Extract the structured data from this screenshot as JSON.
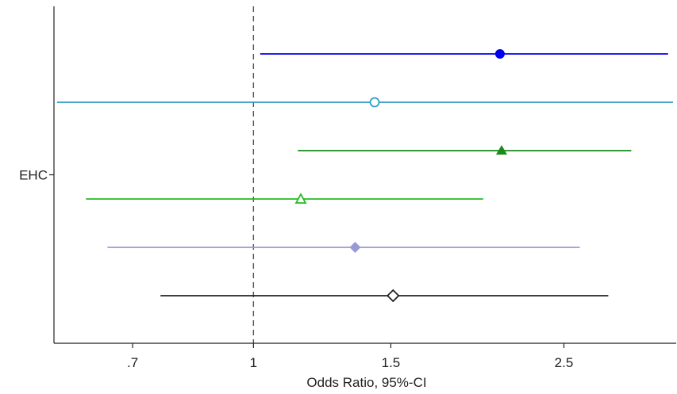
{
  "chart_data": {
    "type": "forest",
    "xlabel": "Odds Ratio, 95%-CI",
    "ylabel": "",
    "x_scale": "log",
    "xlim": [
      0.555,
      3.45
    ],
    "x_ticks": [
      0.7,
      1,
      1.5,
      2.5
    ],
    "x_tick_labels": [
      ".7",
      "1",
      "1.5",
      "2.5"
    ],
    "reference_line": 1,
    "y_categories": [
      "EHC"
    ],
    "grid": false,
    "series": [
      {
        "estimate": 2.07,
        "ci_low": 1.02,
        "ci_high": 3.4,
        "marker": "filled-circle",
        "color": "#0000ee"
      },
      {
        "estimate": 1.43,
        "ci_low": 0.56,
        "ci_high": 3.45,
        "marker": "hollow-circle",
        "color": "#2e9cc4"
      },
      {
        "estimate": 2.08,
        "ci_low": 1.14,
        "ci_high": 3.05,
        "marker": "filled-triangle",
        "color": "#1a8a1a"
      },
      {
        "estimate": 1.15,
        "ci_low": 0.61,
        "ci_high": 1.97,
        "marker": "hollow-triangle",
        "color": "#22bb22"
      },
      {
        "estimate": 1.35,
        "ci_low": 0.65,
        "ci_high": 2.62,
        "marker": "filled-diamond",
        "color": "#9999d8"
      },
      {
        "estimate": 1.51,
        "ci_low": 0.76,
        "ci_high": 2.85,
        "marker": "hollow-diamond",
        "color": "#222222"
      }
    ]
  }
}
